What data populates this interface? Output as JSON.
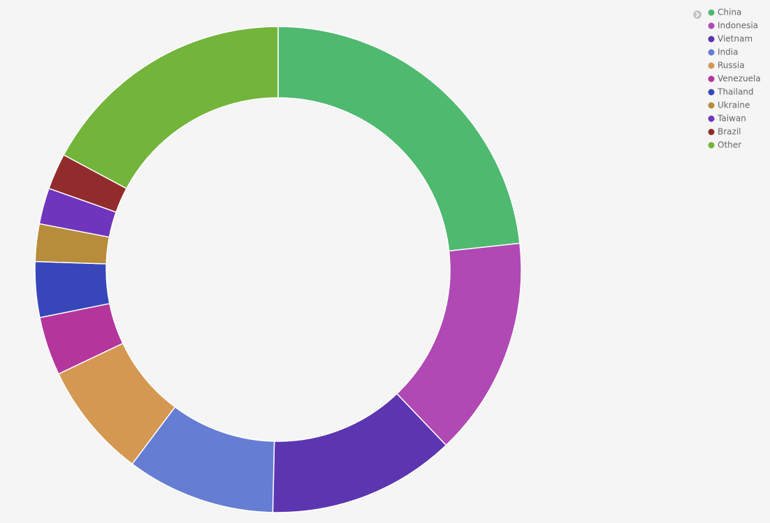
{
  "chart_data": {
    "type": "donut",
    "categories": [
      "China",
      "Indonesia",
      "Vietnam",
      "India",
      "Russia",
      "Venezuela",
      "Thailand",
      "Ukraine",
      "Taiwan",
      "Brazil",
      "Other"
    ],
    "values": [
      23.3,
      14.6,
      12.5,
      9.9,
      7.7,
      3.9,
      3.7,
      2.5,
      2.4,
      2.4,
      17.2
    ],
    "colors": [
      "#4fb970",
      "#b049b4",
      "#5c35b0",
      "#667dd4",
      "#d49852",
      "#b4369c",
      "#3747ba",
      "#b78c3a",
      "#6f35bd",
      "#922b2b",
      "#73b43a"
    ],
    "legend": "top-right"
  }
}
